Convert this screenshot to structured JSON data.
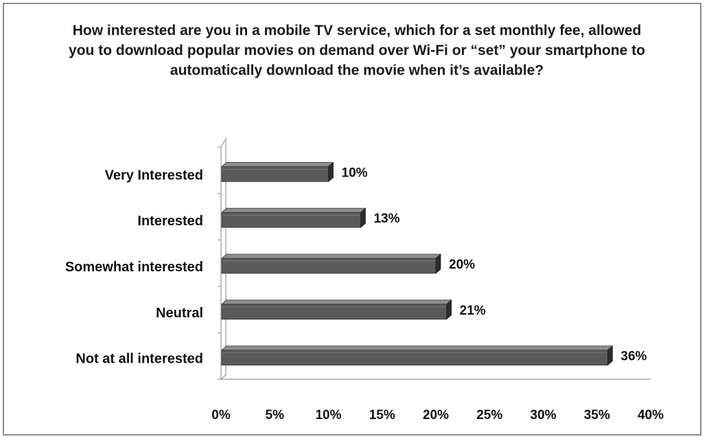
{
  "chart_data": {
    "type": "bar",
    "orientation": "horizontal",
    "style": "3d",
    "title": "How interested are you in a mobile TV service, which for a set monthly fee, allowed you to download popular movies on demand over Wi-Fi or “set” your smartphone to automatically download the movie when it’s available?",
    "categories": [
      "Very Interested",
      "Interested",
      "Somewhat interested",
      "Neutral",
      "Not at all interested"
    ],
    "values": [
      10,
      13,
      20,
      21,
      36
    ],
    "data_labels": [
      "10%",
      "13%",
      "20%",
      "21%",
      "36%"
    ],
    "xlim": [
      0,
      40
    ],
    "x_ticks": [
      0,
      5,
      10,
      15,
      20,
      25,
      30,
      35,
      40
    ],
    "x_tick_labels": [
      "0%",
      "5%",
      "10%",
      "15%",
      "20%",
      "25%",
      "30%",
      "35%",
      "40%"
    ],
    "xlabel": "",
    "ylabel": "",
    "grid": false,
    "legend": "none",
    "colors": {
      "bar_front": "#5a5a5a",
      "bar_top": "#8e8e8e",
      "bar_side": "#2c2c2c",
      "frame": "#8c8c8c"
    }
  }
}
